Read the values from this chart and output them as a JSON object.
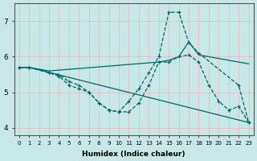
{
  "background_color": "#c8e8e8",
  "grid_color": "#f0b8b8",
  "line_color": "#006666",
  "xlabel": "Humidex (Indice chaleur)",
  "xlim": [
    -0.5,
    23.5
  ],
  "ylim": [
    3.8,
    7.5
  ],
  "yticks": [
    4,
    5,
    6,
    7
  ],
  "xticks": [
    0,
    1,
    2,
    3,
    4,
    5,
    6,
    7,
    8,
    9,
    10,
    11,
    12,
    13,
    14,
    15,
    16,
    17,
    18,
    19,
    20,
    21,
    22,
    23
  ],
  "series": [
    {
      "x": [
        0,
        1,
        3,
        14,
        15,
        16,
        17,
        18,
        23
      ],
      "y": [
        5.7,
        5.7,
        5.6,
        5.85,
        5.9,
        6.0,
        6.42,
        6.05,
        5.8
      ],
      "linestyle": "-",
      "has_markers": false
    },
    {
      "x": [
        0,
        1,
        3,
        4,
        5,
        6,
        7,
        8,
        9,
        10,
        11,
        12,
        13,
        14,
        15,
        16,
        17,
        18,
        22,
        23
      ],
      "y": [
        5.7,
        5.7,
        5.55,
        5.5,
        5.3,
        5.2,
        5.0,
        4.7,
        4.5,
        4.45,
        4.75,
        5.1,
        5.55,
        6.0,
        7.25,
        7.25,
        6.4,
        6.1,
        5.2,
        4.15
      ],
      "linestyle": "--",
      "has_markers": true
    },
    {
      "x": [
        0,
        1,
        23
      ],
      "y": [
        5.7,
        5.7,
        4.15
      ],
      "linestyle": "-",
      "has_markers": false
    },
    {
      "x": [
        0,
        1,
        3,
        4,
        5,
        6,
        7,
        8,
        9,
        10,
        11,
        12,
        13,
        14,
        15,
        16,
        17,
        18,
        19,
        20,
        21,
        22,
        23
      ],
      "y": [
        5.7,
        5.7,
        5.55,
        5.45,
        5.2,
        5.1,
        5.0,
        4.7,
        4.5,
        4.45,
        4.45,
        4.7,
        5.2,
        5.85,
        5.85,
        6.0,
        6.05,
        5.85,
        5.2,
        4.75,
        4.5,
        4.6,
        4.15
      ],
      "linestyle": "--",
      "has_markers": true
    }
  ]
}
